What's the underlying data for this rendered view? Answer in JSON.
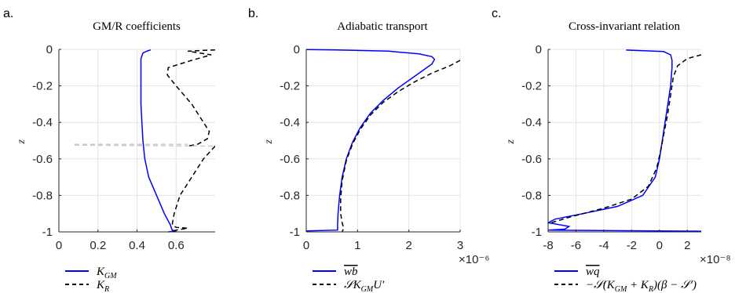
{
  "chart_data": [
    {
      "type": "line",
      "panel_label": "a.",
      "title": "GM/R coefficients",
      "xlabel": "",
      "ylabel": "z",
      "xlim": [
        0,
        0.8
      ],
      "ylim": [
        -1,
        0
      ],
      "xticks": [
        0,
        0.2,
        0.4,
        0.6
      ],
      "xtick_labels": [
        "0",
        "0.2",
        "0.4",
        "0.6"
      ],
      "yticks": [
        0,
        -0.2,
        -0.4,
        -0.6,
        -0.8,
        -1
      ],
      "ytick_labels": [
        "0",
        "-0.2",
        "-0.4",
        "-0.6",
        "-0.8",
        "-1"
      ],
      "grid": true,
      "legend_position": "below",
      "x_exponent": "",
      "series": [
        {
          "name": "K_GM",
          "color": "#0000ff",
          "dash": "solid",
          "points": [
            [
              0.47,
              -0.003
            ],
            [
              0.45,
              -0.01
            ],
            [
              0.43,
              -0.02
            ],
            [
              0.42,
              -0.05
            ],
            [
              0.42,
              -0.1
            ],
            [
              0.42,
              -0.2
            ],
            [
              0.42,
              -0.3
            ],
            [
              0.425,
              -0.4
            ],
            [
              0.43,
              -0.5
            ],
            [
              0.44,
              -0.6
            ],
            [
              0.46,
              -0.7
            ],
            [
              0.5,
              -0.8
            ],
            [
              0.54,
              -0.9
            ],
            [
              0.57,
              -0.96
            ],
            [
              0.58,
              -0.99
            ],
            [
              0.6,
              -0.995
            ],
            [
              0.56,
              -1.0
            ]
          ]
        },
        {
          "name": "K_R",
          "color": "#000000",
          "dash": "dashed",
          "points": [
            [
              0.8,
              -0.003
            ],
            [
              0.66,
              -0.01
            ],
            [
              0.78,
              -0.03
            ],
            [
              0.68,
              -0.06
            ],
            [
              0.56,
              -0.1
            ],
            [
              0.555,
              -0.14
            ],
            [
              0.6,
              -0.2
            ],
            [
              0.68,
              -0.3
            ],
            [
              0.74,
              -0.4
            ],
            [
              0.77,
              -0.45
            ],
            [
              0.76,
              -0.49
            ],
            [
              0.71,
              -0.52
            ],
            [
              0.66,
              -0.53
            ]
          ]
        },
        {
          "name": "K_R (lower)",
          "color": "#000000",
          "dash": "dashed",
          "points": [
            [
              0.8,
              -0.53
            ],
            [
              0.74,
              -0.6
            ],
            [
              0.68,
              -0.7
            ],
            [
              0.62,
              -0.8
            ],
            [
              0.59,
              -0.9
            ],
            [
              0.58,
              -0.96
            ],
            [
              0.6,
              -0.975
            ],
            [
              0.66,
              -0.98
            ],
            [
              0.6,
              -0.99
            ],
            [
              0.58,
              -1.0
            ]
          ]
        },
        {
          "name": "gap",
          "color": "#c8c8c8",
          "dash": "dashed",
          "points": [
            [
              0.08,
              -0.52
            ],
            [
              0.66,
              -0.52
            ]
          ]
        },
        {
          "name": "gap2",
          "color": "#c8c8c8",
          "dash": "dashed",
          "points": [
            [
              0.08,
              -0.525
            ],
            [
              0.8,
              -0.53
            ]
          ]
        }
      ],
      "legend": [
        {
          "label": "K",
          "sub": "GM",
          "color": "#0000ff",
          "dash": "solid"
        },
        {
          "label": "K",
          "sub": "R",
          "color": "#000000",
          "dash": "dashed"
        }
      ]
    },
    {
      "type": "line",
      "panel_label": "b.",
      "title": "Adiabatic transport",
      "xlabel": "",
      "ylabel": "z",
      "xlim": [
        0,
        3
      ],
      "ylim": [
        -1,
        0
      ],
      "xticks": [
        0,
        1,
        2,
        3
      ],
      "xtick_labels": [
        "0",
        "1",
        "2",
        "3"
      ],
      "yticks": [
        0,
        -0.2,
        -0.4,
        -0.6,
        -0.8,
        -1
      ],
      "ytick_labels": [
        "0",
        "-0.2",
        "-0.4",
        "-0.6",
        "-0.8",
        "-1"
      ],
      "grid": true,
      "legend_position": "below",
      "x_exponent": "×10⁻⁶",
      "series": [
        {
          "name": "wb",
          "color": "#0000ff",
          "dash": "solid",
          "points": [
            [
              0,
              -0.001
            ],
            [
              0.6,
              -0.003
            ],
            [
              1.6,
              -0.01
            ],
            [
              2.2,
              -0.025
            ],
            [
              2.45,
              -0.04
            ],
            [
              2.5,
              -0.055
            ],
            [
              2.45,
              -0.08
            ],
            [
              2.3,
              -0.11
            ],
            [
              2.1,
              -0.15
            ],
            [
              1.8,
              -0.21
            ],
            [
              1.5,
              -0.28
            ],
            [
              1.25,
              -0.35
            ],
            [
              1.05,
              -0.43
            ],
            [
              0.9,
              -0.51
            ],
            [
              0.78,
              -0.6
            ],
            [
              0.7,
              -0.7
            ],
            [
              0.65,
              -0.8
            ],
            [
              0.62,
              -0.9
            ],
            [
              0.61,
              -0.96
            ],
            [
              0.61,
              -0.99
            ],
            [
              0,
              -0.995
            ]
          ]
        },
        {
          "name": "S K_GM U'",
          "color": "#000000",
          "dash": "dashed",
          "points": [
            [
              3.0,
              -0.06
            ],
            [
              2.8,
              -0.09
            ],
            [
              2.45,
              -0.13
            ],
            [
              2.1,
              -0.18
            ],
            [
              1.8,
              -0.23
            ],
            [
              1.5,
              -0.29
            ],
            [
              1.25,
              -0.36
            ],
            [
              1.05,
              -0.44
            ],
            [
              0.9,
              -0.52
            ],
            [
              0.78,
              -0.61
            ],
            [
              0.7,
              -0.72
            ],
            [
              0.67,
              -0.82
            ],
            [
              0.67,
              -0.9
            ],
            [
              0.7,
              -0.95
            ],
            [
              0.73,
              -0.98
            ],
            [
              0.7,
              -1.0
            ]
          ]
        }
      ],
      "legend": [
        {
          "label": "wb",
          "overline": true,
          "color": "#0000ff",
          "dash": "solid"
        },
        {
          "label": "𝒮K",
          "sub": "GM",
          "suffix": "U′",
          "color": "#000000",
          "dash": "dashed"
        }
      ]
    },
    {
      "type": "line",
      "panel_label": "c.",
      "title": "Cross-invariant relation",
      "xlabel": "",
      "ylabel": "z",
      "xlim": [
        -8,
        3
      ],
      "ylim": [
        -1,
        0
      ],
      "xticks": [
        -8,
        -6,
        -4,
        -2,
        0,
        2
      ],
      "xtick_labels": [
        "-8",
        "-6",
        "-4",
        "-2",
        "0",
        "2"
      ],
      "yticks": [
        0,
        -0.2,
        -0.4,
        -0.6,
        -0.8,
        -1
      ],
      "ytick_labels": [
        "0",
        "-0.2",
        "-0.4",
        "-0.6",
        "-0.8",
        "-1"
      ],
      "grid": true,
      "legend_position": "below",
      "x_exponent": "×10⁻⁸",
      "series": [
        {
          "name": "wq",
          "color": "#0000ff",
          "dash": "solid",
          "points": [
            [
              -2.4,
              -0.004
            ],
            [
              0.3,
              -0.012
            ],
            [
              0.8,
              -0.03
            ],
            [
              0.9,
              -0.06
            ],
            [
              0.9,
              -0.1
            ],
            [
              0.8,
              -0.2
            ],
            [
              0.6,
              -0.3
            ],
            [
              0.4,
              -0.4
            ],
            [
              0.2,
              -0.5
            ],
            [
              0,
              -0.6
            ],
            [
              -0.3,
              -0.7
            ],
            [
              -1.2,
              -0.8
            ],
            [
              -3,
              -0.86
            ],
            [
              -5.5,
              -0.9
            ],
            [
              -7.5,
              -0.93
            ],
            [
              -8,
              -0.95
            ],
            [
              -6.5,
              -0.97
            ],
            [
              -6.8,
              -0.985
            ],
            [
              -8,
              -0.99
            ],
            [
              0,
              -0.995
            ],
            [
              3,
              -0.996
            ]
          ]
        },
        {
          "name": "-S(K_GM+K_R)(beta-S')",
          "color": "#000000",
          "dash": "dashed",
          "points": [
            [
              3,
              -0.03
            ],
            [
              2,
              -0.05
            ],
            [
              1.3,
              -0.09
            ],
            [
              1.0,
              -0.15
            ],
            [
              0.8,
              -0.25
            ],
            [
              0.6,
              -0.35
            ],
            [
              0.35,
              -0.45
            ],
            [
              0.1,
              -0.55
            ],
            [
              -0.2,
              -0.65
            ],
            [
              -0.8,
              -0.75
            ],
            [
              -2,
              -0.82
            ],
            [
              -4,
              -0.87
            ],
            [
              -6.5,
              -0.92
            ],
            [
              -8,
              -0.955
            ]
          ]
        }
      ],
      "legend": [
        {
          "label": "wq",
          "overline": true,
          "color": "#0000ff",
          "dash": "solid"
        },
        {
          "label": "−𝒮(K",
          "sub": "GM",
          "mid": " + K",
          "sub2": "R",
          "suffix": ")(β − 𝒮′)",
          "color": "#000000",
          "dash": "dashed"
        }
      ]
    }
  ]
}
